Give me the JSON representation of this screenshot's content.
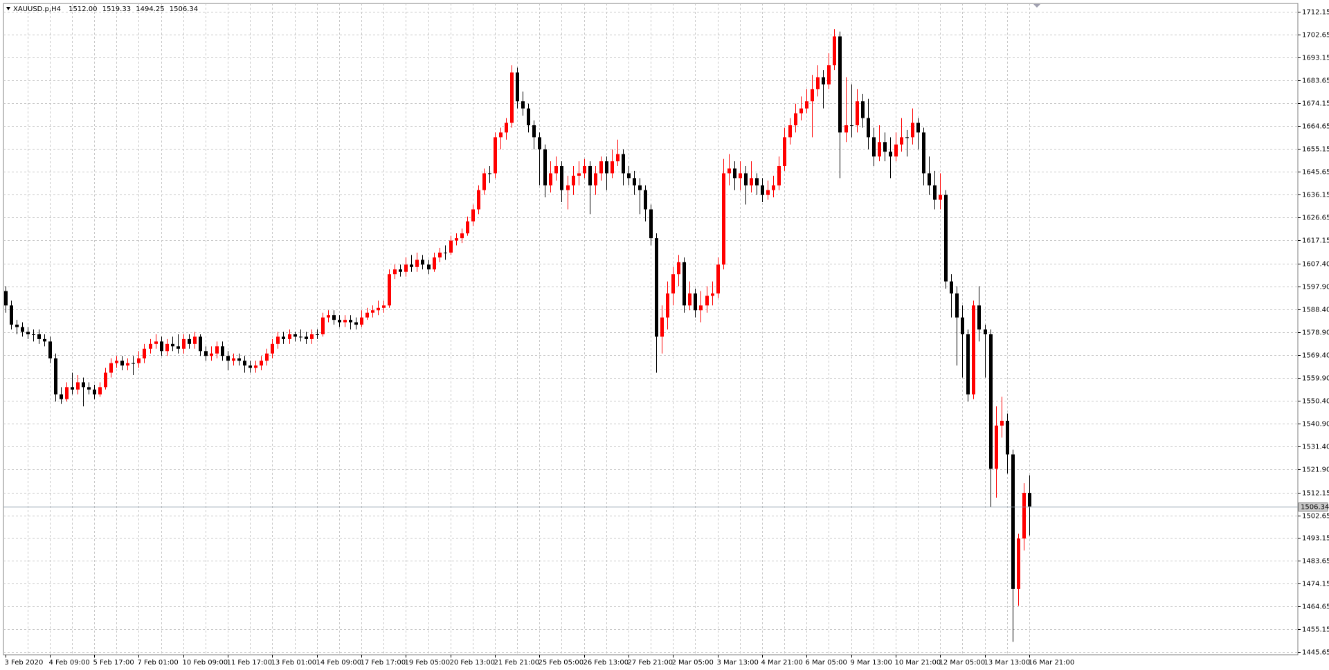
{
  "chart_data": {
    "type": "candlestick",
    "title": "XAUUSD.p,H4",
    "ohlc_labels": [
      "1512.00",
      "1519.33",
      "1494.25",
      "1506.34"
    ],
    "up_color": "#ff0000",
    "down_color": "#000000",
    "grid": true,
    "ylim": [
      1444.6,
      1715.7
    ],
    "yticks": [
      1712.15,
      1702.65,
      1693.15,
      1683.65,
      1674.15,
      1664.65,
      1655.15,
      1645.65,
      1636.15,
      1626.65,
      1617.15,
      {
        "value": 1607.4,
        "label": "1607.40"
      },
      {
        "value": 1597.9,
        "label": "1597.90"
      },
      {
        "value": 1588.4,
        "label": "1588.40"
      },
      {
        "value": 1578.9,
        "label": "1578.90"
      },
      {
        "value": 1569.4,
        "label": "1569.40"
      },
      {
        "value": 1559.9,
        "label": "1559.90"
      },
      {
        "value": 1550.4,
        "label": "1550.40"
      },
      {
        "value": 1540.9,
        "label": "1540.90"
      },
      {
        "value": 1531.4,
        "label": "1531.40"
      },
      {
        "value": 1521.9,
        "label": "1521.90"
      },
      1512.15,
      1502.65,
      1493.15,
      1483.65,
      1474.15,
      1464.65,
      1455.15,
      1445.65
    ],
    "categories": [
      "3 Feb 2020",
      null,
      null,
      null,
      null,
      null,
      null,
      null,
      "4 Feb 09:00",
      null,
      null,
      null,
      null,
      null,
      null,
      null,
      "5 Feb 17:00",
      null,
      null,
      null,
      null,
      null,
      null,
      null,
      "7 Feb 01:00",
      null,
      null,
      null,
      null,
      null,
      null,
      null,
      "10 Feb 09:00",
      null,
      null,
      null,
      null,
      null,
      null,
      null,
      "11 Feb 17:00",
      null,
      null,
      null,
      null,
      null,
      null,
      null,
      "13 Feb 01:00",
      null,
      null,
      null,
      null,
      null,
      null,
      null,
      "14 Feb 09:00",
      null,
      null,
      null,
      null,
      null,
      null,
      null,
      "17 Feb 17:00",
      null,
      null,
      null,
      null,
      null,
      null,
      null,
      "19 Feb 05:00",
      null,
      null,
      null,
      null,
      null,
      null,
      null,
      "20 Feb 13:00",
      null,
      null,
      null,
      null,
      null,
      null,
      null,
      "21 Feb 21:00",
      null,
      null,
      null,
      null,
      null,
      null,
      null,
      "25 Feb 05:00",
      null,
      null,
      null,
      null,
      null,
      null,
      null,
      "26 Feb 13:00",
      null,
      null,
      null,
      null,
      null,
      null,
      null,
      "27 Feb 21:00",
      null,
      null,
      null,
      null,
      null,
      null,
      null,
      "2 Mar 05:00",
      null,
      null,
      null,
      null,
      null,
      null,
      null,
      "3 Mar 13:00",
      null,
      null,
      null,
      null,
      null,
      null,
      null,
      "4 Mar 21:00",
      null,
      null,
      null,
      null,
      null,
      null,
      null,
      "6 Mar 05:00",
      null,
      null,
      null,
      null,
      null,
      null,
      null,
      "9 Mar 13:00",
      null,
      null,
      null,
      null,
      null,
      null,
      null,
      "10 Mar 21:00",
      null,
      null,
      null,
      null,
      null,
      null,
      null,
      "12 Mar 05:00",
      null,
      null,
      null,
      null,
      null,
      null,
      null,
      "13 Mar 13:00",
      null,
      null,
      null,
      null,
      null,
      null,
      null,
      "16 Mar 21:00"
    ],
    "candles": [
      [
        1596,
        1598,
        1587,
        1590
      ],
      [
        1590,
        1592,
        1580,
        1582
      ],
      [
        1582,
        1584,
        1578,
        1581
      ],
      [
        1581,
        1583,
        1577,
        1579
      ],
      [
        1579,
        1581,
        1576,
        1578
      ],
      [
        1578,
        1580,
        1575,
        1578
      ],
      [
        1578,
        1580,
        1574,
        1576
      ],
      [
        1576,
        1578,
        1573,
        1575
      ],
      [
        1575,
        1577,
        1566,
        1568
      ],
      [
        1568,
        1570,
        1550,
        1553
      ],
      [
        1553,
        1556,
        1549,
        1551
      ],
      [
        1551,
        1558,
        1550,
        1556
      ],
      [
        1556,
        1562,
        1553,
        1555
      ],
      [
        1555,
        1561,
        1553,
        1558
      ],
      [
        1558,
        1560,
        1548,
        1556
      ],
      [
        1556,
        1558,
        1553,
        1555
      ],
      [
        1555,
        1557,
        1551,
        1553
      ],
      [
        1553,
        1558,
        1552,
        1556
      ],
      [
        1556,
        1564,
        1555,
        1562
      ],
      [
        1562,
        1568,
        1560,
        1566
      ],
      [
        1566,
        1569,
        1564,
        1567
      ],
      [
        1567,
        1569,
        1563,
        1565
      ],
      [
        1565,
        1568,
        1563,
        1566
      ],
      [
        1566,
        1569,
        1561,
        1566
      ],
      [
        1566,
        1571,
        1564,
        1568
      ],
      [
        1568,
        1574,
        1566,
        1572
      ],
      [
        1572,
        1576,
        1570,
        1574
      ],
      [
        1574,
        1578,
        1572,
        1575
      ],
      [
        1575,
        1577,
        1569,
        1571
      ],
      [
        1571,
        1576,
        1569,
        1574
      ],
      [
        1574,
        1577,
        1571,
        1573
      ],
      [
        1573,
        1578,
        1570,
        1572
      ],
      [
        1572,
        1578,
        1570,
        1576
      ],
      [
        1576,
        1578,
        1572,
        1574
      ],
      [
        1574,
        1579,
        1572,
        1577
      ],
      [
        1577,
        1578,
        1569,
        1571
      ],
      [
        1571,
        1573,
        1567,
        1569
      ],
      [
        1569,
        1573,
        1567,
        1570
      ],
      [
        1570,
        1575,
        1568,
        1573
      ],
      [
        1573,
        1575,
        1567,
        1569
      ],
      [
        1569,
        1571,
        1563,
        1567
      ],
      [
        1567,
        1570,
        1565,
        1568
      ],
      [
        1568,
        1570,
        1565,
        1567
      ],
      [
        1567,
        1569,
        1562,
        1565
      ],
      [
        1565,
        1567,
        1562,
        1564
      ],
      [
        1564,
        1567,
        1562,
        1565
      ],
      [
        1565,
        1569,
        1563,
        1567
      ],
      [
        1567,
        1572,
        1565,
        1570
      ],
      [
        1570,
        1576,
        1568,
        1574
      ],
      [
        1574,
        1579,
        1572,
        1577
      ],
      [
        1577,
        1579,
        1574,
        1576
      ],
      [
        1576,
        1580,
        1574,
        1578
      ],
      [
        1578,
        1579,
        1575,
        1577
      ],
      [
        1577,
        1580,
        1575,
        1577
      ],
      [
        1577,
        1579,
        1574,
        1576
      ],
      [
        1576,
        1580,
        1574,
        1578
      ],
      [
        1578,
        1580,
        1576,
        1578
      ],
      [
        1578,
        1587,
        1577,
        1585
      ],
      [
        1585,
        1588,
        1583,
        1586
      ],
      [
        1586,
        1588,
        1582,
        1584
      ],
      [
        1584,
        1586,
        1581,
        1583
      ],
      [
        1583,
        1586,
        1581,
        1584
      ],
      [
        1584,
        1586,
        1580,
        1583
      ],
      [
        1583,
        1585,
        1580,
        1582
      ],
      [
        1582,
        1588,
        1581,
        1585
      ],
      [
        1585,
        1589,
        1584,
        1587
      ],
      [
        1587,
        1590,
        1585,
        1588
      ],
      [
        1588,
        1592,
        1586,
        1589
      ],
      [
        1589,
        1592,
        1587,
        1590
      ],
      [
        1590,
        1605,
        1589,
        1603
      ],
      [
        1603,
        1607,
        1601,
        1605
      ],
      [
        1605,
        1607,
        1602,
        1604
      ],
      [
        1604,
        1610,
        1602,
        1607
      ],
      [
        1607,
        1611,
        1604,
        1606
      ],
      [
        1606,
        1612,
        1604,
        1609
      ],
      [
        1609,
        1611,
        1605,
        1607
      ],
      [
        1607,
        1609,
        1603,
        1605
      ],
      [
        1605,
        1612,
        1604,
        1610
      ],
      [
        1610,
        1614,
        1608,
        1612
      ],
      [
        1612,
        1615,
        1609,
        1612
      ],
      [
        1612,
        1619,
        1611,
        1617
      ],
      [
        1617,
        1620,
        1615,
        1618
      ],
      [
        1618,
        1622,
        1616,
        1620
      ],
      [
        1620,
        1627,
        1619,
        1625
      ],
      [
        1625,
        1632,
        1623,
        1630
      ],
      [
        1630,
        1640,
        1628,
        1638
      ],
      [
        1638,
        1647,
        1636,
        1645
      ],
      [
        1645,
        1648,
        1641,
        1645
      ],
      [
        1645,
        1662,
        1643,
        1660
      ],
      [
        1660,
        1664,
        1655,
        1662
      ],
      [
        1662,
        1668,
        1659,
        1666
      ],
      [
        1666,
        1690,
        1664,
        1687
      ],
      [
        1687,
        1689,
        1672,
        1675
      ],
      [
        1675,
        1679,
        1669,
        1672
      ],
      [
        1672,
        1674,
        1662,
        1665
      ],
      [
        1665,
        1667,
        1655,
        1660
      ],
      [
        1660,
        1662,
        1640,
        1655
      ],
      [
        1655,
        1657,
        1635,
        1640
      ],
      [
        1640,
        1650,
        1637,
        1645
      ],
      [
        1645,
        1652,
        1642,
        1648
      ],
      [
        1648,
        1650,
        1633,
        1638
      ],
      [
        1638,
        1644,
        1630,
        1640
      ],
      [
        1640,
        1648,
        1636,
        1644
      ],
      [
        1644,
        1650,
        1640,
        1645
      ],
      [
        1645,
        1651,
        1643,
        1648
      ],
      [
        1648,
        1650,
        1628,
        1640
      ],
      [
        1640,
        1648,
        1636,
        1645
      ],
      [
        1645,
        1652,
        1642,
        1650
      ],
      [
        1650,
        1652,
        1638,
        1645
      ],
      [
        1645,
        1655,
        1643,
        1650
      ],
      [
        1650,
        1659,
        1648,
        1653
      ],
      [
        1653,
        1655,
        1640,
        1645
      ],
      [
        1645,
        1648,
        1640,
        1643
      ],
      [
        1643,
        1646,
        1636,
        1640
      ],
      [
        1640,
        1643,
        1628,
        1638
      ],
      [
        1638,
        1640,
        1625,
        1630
      ],
      [
        1630,
        1632,
        1615,
        1618
      ],
      [
        1618,
        1620,
        1562,
        1577
      ],
      [
        1577,
        1590,
        1570,
        1585
      ],
      [
        1585,
        1600,
        1580,
        1595
      ],
      [
        1595,
        1606,
        1590,
        1603
      ],
      [
        1603,
        1611,
        1598,
        1608
      ],
      [
        1608,
        1610,
        1587,
        1590
      ],
      [
        1590,
        1600,
        1588,
        1595
      ],
      [
        1595,
        1597,
        1585,
        1588
      ],
      [
        1588,
        1596,
        1583,
        1590
      ],
      [
        1590,
        1598,
        1587,
        1594
      ],
      [
        1594,
        1600,
        1590,
        1595
      ],
      [
        1595,
        1610,
        1593,
        1607
      ],
      [
        1607,
        1651,
        1605,
        1645
      ],
      [
        1645,
        1653,
        1640,
        1647
      ],
      [
        1647,
        1650,
        1638,
        1643
      ],
      [
        1643,
        1650,
        1638,
        1645
      ],
      [
        1645,
        1648,
        1632,
        1640
      ],
      [
        1640,
        1650,
        1637,
        1643
      ],
      [
        1643,
        1645,
        1636,
        1640
      ],
      [
        1640,
        1643,
        1633,
        1636
      ],
      [
        1636,
        1642,
        1634,
        1638
      ],
      [
        1638,
        1644,
        1635,
        1640
      ],
      [
        1640,
        1652,
        1638,
        1648
      ],
      [
        1648,
        1664,
        1646,
        1660
      ],
      [
        1660,
        1668,
        1657,
        1665
      ],
      [
        1665,
        1674,
        1662,
        1670
      ],
      [
        1670,
        1677,
        1667,
        1672
      ],
      [
        1672,
        1680,
        1670,
        1675
      ],
      [
        1675,
        1686,
        1660,
        1680
      ],
      [
        1680,
        1690,
        1677,
        1685
      ],
      [
        1685,
        1688,
        1672,
        1682
      ],
      [
        1682,
        1695,
        1680,
        1690
      ],
      [
        1690,
        1705,
        1688,
        1702
      ],
      [
        1702,
        1704,
        1643,
        1662
      ],
      [
        1662,
        1685,
        1658,
        1665
      ],
      [
        1665,
        1682,
        1660,
        1665
      ],
      [
        1665,
        1680,
        1662,
        1675
      ],
      [
        1675,
        1678,
        1664,
        1668
      ],
      [
        1668,
        1676,
        1655,
        1660
      ],
      [
        1660,
        1664,
        1648,
        1652
      ],
      [
        1652,
        1665,
        1650,
        1658
      ],
      [
        1658,
        1662,
        1650,
        1654
      ],
      [
        1654,
        1660,
        1643,
        1652
      ],
      [
        1652,
        1662,
        1650,
        1657
      ],
      [
        1657,
        1668,
        1654,
        1660
      ],
      [
        1660,
        1663,
        1652,
        1660
      ],
      [
        1660,
        1672,
        1657,
        1666
      ],
      [
        1666,
        1668,
        1655,
        1662
      ],
      [
        1662,
        1664,
        1640,
        1645
      ],
      [
        1645,
        1652,
        1636,
        1640
      ],
      [
        1640,
        1646,
        1630,
        1634
      ],
      [
        1634,
        1645,
        1630,
        1636
      ],
      [
        1636,
        1638,
        1597,
        1600
      ],
      [
        1600,
        1603,
        1585,
        1595
      ],
      [
        1595,
        1598,
        1565,
        1585
      ],
      [
        1585,
        1590,
        1560,
        1578
      ],
      [
        1578,
        1580,
        1550,
        1553
      ],
      [
        1553,
        1592,
        1551,
        1590
      ],
      [
        1590,
        1598,
        1575,
        1580
      ],
      [
        1580,
        1582,
        1560,
        1578
      ],
      [
        1578,
        1580,
        1506,
        1522
      ],
      [
        1522,
        1548,
        1510,
        1540
      ],
      [
        1540,
        1552,
        1535,
        1542
      ],
      [
        1542,
        1545,
        1520,
        1528
      ],
      [
        1528,
        1530,
        1450,
        1472
      ],
      [
        1472,
        1495,
        1465,
        1493
      ],
      [
        1493,
        1516,
        1488,
        1512
      ],
      [
        1512,
        1519.33,
        1494.25,
        1506.34
      ]
    ]
  }
}
